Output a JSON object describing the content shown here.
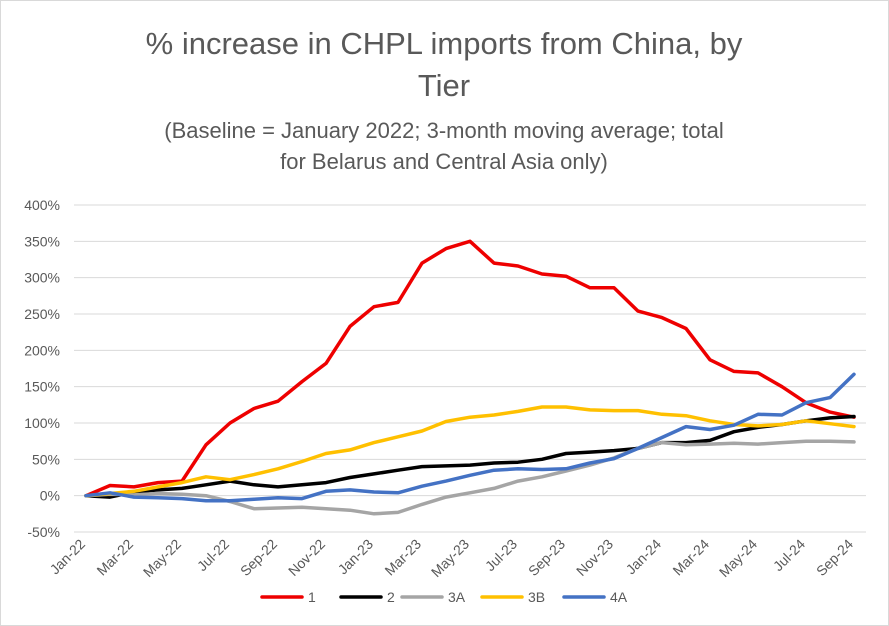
{
  "chart_data": {
    "type": "line",
    "title_line1": "% increase in CHPL imports from China, by",
    "title_line2": "Tier",
    "subtitle_line1": "(Baseline = January 2022; 3-month moving average; total",
    "subtitle_line2": "for Belarus and Central Asia only)",
    "xlabel": "",
    "ylabel": "",
    "ylim": [
      -50,
      400
    ],
    "yticks": [
      -50,
      0,
      50,
      100,
      150,
      200,
      250,
      300,
      350,
      400
    ],
    "ytick_labels": [
      "-50%",
      "0%",
      "50%",
      "100%",
      "150%",
      "200%",
      "250%",
      "300%",
      "350%",
      "400%"
    ],
    "grid": true,
    "legend_position": "bottom",
    "x": [
      "Jan-22",
      "Feb-22",
      "Mar-22",
      "Apr-22",
      "May-22",
      "Jun-22",
      "Jul-22",
      "Aug-22",
      "Sep-22",
      "Oct-22",
      "Nov-22",
      "Dec-22",
      "Jan-23",
      "Feb-23",
      "Mar-23",
      "Apr-23",
      "May-23",
      "Jun-23",
      "Jul-23",
      "Aug-23",
      "Sep-23",
      "Oct-23",
      "Nov-23",
      "Dec-23",
      "Jan-24",
      "Feb-24",
      "Mar-24",
      "Apr-24",
      "May-24",
      "Jun-24",
      "Jul-24",
      "Aug-24",
      "Sep-24"
    ],
    "xtick_labels": [
      "Jan-22",
      "Mar-22",
      "May-22",
      "Jul-22",
      "Sep-22",
      "Nov-22",
      "Jan-23",
      "Mar-23",
      "May-23",
      "Jul-23",
      "Sep-23",
      "Nov-23",
      "Jan-24",
      "Mar-24",
      "May-24",
      "Jul-24",
      "Sep-24"
    ],
    "series": [
      {
        "name": "1",
        "color": "#ee0000",
        "values": [
          0,
          14,
          12,
          18,
          20,
          70,
          100,
          120,
          130,
          157,
          182,
          233,
          260,
          266,
          320,
          340,
          350,
          320,
          316,
          305,
          302,
          286,
          286,
          254,
          245,
          230,
          187,
          171,
          169,
          150,
          128,
          115,
          108
        ]
      },
      {
        "name": "2",
        "color": "#000000",
        "values": [
          0,
          -2,
          5,
          8,
          10,
          15,
          20,
          15,
          12,
          15,
          18,
          25,
          30,
          35,
          40,
          41,
          42,
          45,
          46,
          50,
          58,
          60,
          62,
          65,
          73,
          73,
          76,
          88,
          94,
          98,
          103,
          107,
          109
        ]
      },
      {
        "name": "3A",
        "color": "#a5a5a5",
        "values": [
          0,
          2,
          1,
          3,
          2,
          0,
          -8,
          -18,
          -17,
          -16,
          -18,
          -20,
          -25,
          -23,
          -12,
          -2,
          4,
          10,
          20,
          26,
          34,
          42,
          52,
          65,
          73,
          70,
          71,
          72,
          71,
          73,
          75,
          75,
          74
        ]
      },
      {
        "name": "3B",
        "color": "#ffc000",
        "values": [
          0,
          3,
          6,
          12,
          18,
          26,
          22,
          29,
          37,
          47,
          58,
          63,
          73,
          81,
          89,
          102,
          108,
          111,
          116,
          122,
          122,
          118,
          117,
          117,
          112,
          110,
          103,
          98,
          96,
          98,
          103,
          99,
          95
        ]
      },
      {
        "name": "4A",
        "color": "#4472c4",
        "values": [
          0,
          4,
          -2,
          -3,
          -4,
          -7,
          -7,
          -5,
          -3,
          -4,
          6,
          8,
          5,
          4,
          13,
          20,
          28,
          35,
          37,
          36,
          37,
          45,
          51,
          65,
          80,
          95,
          91,
          97,
          112,
          111,
          128,
          135,
          167
        ]
      }
    ]
  }
}
